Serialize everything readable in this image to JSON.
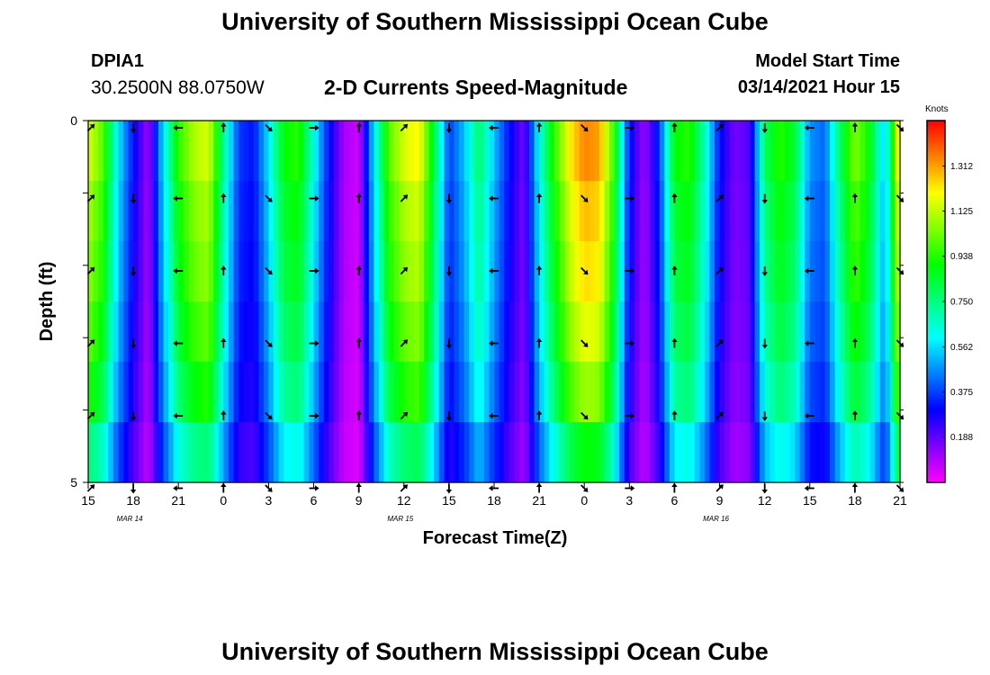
{
  "header": {
    "main_title": "University of Southern Mississippi Ocean Cube",
    "footer_title": "University of Southern Mississippi Ocean Cube",
    "station_id": "DPIA1",
    "station_coords": "30.2500N 88.0750W",
    "model_label": "Model Start Time",
    "model_time": "03/14/2021 Hour 15"
  },
  "chart_data": {
    "type": "heatmap",
    "title": "2-D Currents Speed-Magnitude",
    "xlabel": "Forecast Time(Z)",
    "ylabel": "Depth (ft)",
    "ylim": [
      0,
      5
    ],
    "y_ticks": [
      "0",
      "5"
    ],
    "x_ticks": [
      "15",
      "18",
      "21",
      "0",
      "3",
      "6",
      "9",
      "12",
      "15",
      "18",
      "21",
      "0",
      "3",
      "6",
      "9",
      "12",
      "15",
      "18",
      "21"
    ],
    "date_labels": [
      {
        "label": "MAR 14",
        "tick_index": 1
      },
      {
        "label": "MAR 15",
        "tick_index": 7
      },
      {
        "label": "MAR 16",
        "tick_index": 14
      }
    ],
    "colorbar": {
      "title": "Knots",
      "ticks": [
        "1.312",
        "1.125",
        "0.938",
        "0.750",
        "0.562",
        "0.375",
        "0.188"
      ],
      "min": 0.0,
      "max": 1.5
    },
    "hours_start": 15,
    "hours_end": 69,
    "depth_rows": 6,
    "speed_key_hours": [
      15,
      16,
      17,
      18,
      19,
      20,
      21,
      22,
      23,
      24,
      25,
      26,
      27,
      28,
      29,
      30,
      31,
      32,
      33,
      34,
      35,
      36,
      37,
      38,
      39,
      40,
      41,
      42,
      43,
      44,
      45,
      46,
      47,
      48,
      49,
      50,
      51,
      52,
      53,
      54,
      55,
      56,
      57,
      58,
      59,
      60,
      61,
      62,
      63,
      64,
      65,
      66,
      67,
      68,
      69
    ],
    "speed_key_values": [
      1.1,
      0.95,
      0.55,
      0.3,
      0.1,
      0.55,
      0.9,
      1.05,
      1.1,
      0.7,
      0.35,
      0.3,
      0.55,
      0.85,
      0.9,
      0.6,
      0.3,
      0.1,
      0.05,
      0.55,
      0.95,
      1.1,
      1.15,
      0.8,
      0.35,
      0.5,
      0.75,
      0.5,
      0.3,
      0.15,
      0.6,
      0.9,
      1.15,
      1.28,
      1.25,
      0.9,
      0.3,
      0.1,
      0.35,
      0.85,
      0.9,
      0.65,
      0.3,
      0.15,
      0.2,
      0.75,
      0.9,
      0.8,
      0.45,
      0.4,
      0.75,
      1.0,
      0.85,
      0.5,
      1.25
    ],
    "depth_factor": [
      1.05,
      1.0,
      0.97,
      0.92,
      0.85,
      0.7
    ],
    "direction_angles_deg": [
      45,
      180,
      270,
      0,
      135,
      90,
      0,
      45,
      180,
      270,
      0,
      135,
      90,
      0,
      45,
      180,
      270,
      0,
      135
    ],
    "arrow_hours": [
      15,
      18,
      21,
      24,
      27,
      30,
      33,
      36,
      39,
      42,
      45,
      48,
      51,
      54,
      57,
      60,
      63,
      66,
      69
    ]
  }
}
